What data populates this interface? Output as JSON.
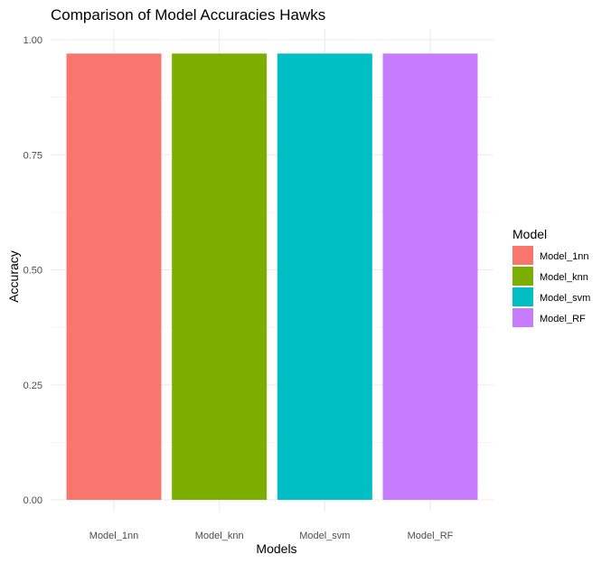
{
  "chart_data": {
    "type": "bar",
    "title": "Comparison of Model Accuracies  Hawks",
    "xlabel": "Models",
    "ylabel": "Accuracy",
    "categories": [
      "Model_1nn",
      "Model_knn",
      "Model_svm",
      "Model_RF"
    ],
    "values": [
      0.97,
      0.97,
      0.97,
      0.97
    ],
    "ylim": [
      0,
      1.0
    ],
    "yticks": [
      "0.00",
      "0.25",
      "0.50",
      "0.75",
      "1.00"
    ],
    "grid": true,
    "legend": {
      "title": "Model",
      "placement": "right",
      "entries": [
        "Model_1nn",
        "Model_knn",
        "Model_svm",
        "Model_RF"
      ]
    },
    "colors": [
      "#F8766D",
      "#7CAE00",
      "#00BFC4",
      "#C77CFF"
    ],
    "grid_color": "#ebebeb"
  }
}
